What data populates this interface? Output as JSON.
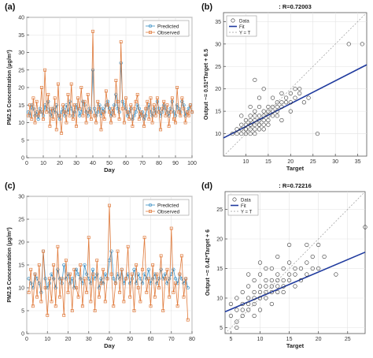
{
  "panels": [
    {
      "label": "(a)"
    },
    {
      "label": "(b)"
    },
    {
      "label": "(c)"
    },
    {
      "label": "(d)"
    }
  ],
  "chart_data": [
    {
      "type": "line",
      "panel": "(a)",
      "xlabel": "Day",
      "ylabel": "PM2.5 Concentration (μg/m³)",
      "xlim": [
        0,
        100
      ],
      "ylim": [
        0,
        40
      ],
      "xticks": [
        0,
        10,
        20,
        30,
        40,
        50,
        60,
        70,
        80,
        90,
        100
      ],
      "yticks": [
        0,
        5,
        10,
        15,
        20,
        25,
        30,
        35,
        40
      ],
      "legend_position": "top-right",
      "colors": {
        "predicted": "#3a8fc4",
        "observed": "#e07b3c"
      },
      "series": [
        {
          "name": "Predicted",
          "values": [
            13,
            12,
            15,
            14,
            12,
            13,
            11,
            14,
            13,
            12,
            15,
            14,
            16,
            13,
            12,
            14,
            13,
            15,
            12,
            11,
            13,
            14,
            12,
            15,
            13,
            16,
            14,
            12,
            13,
            15,
            14,
            12,
            13,
            16,
            15,
            13,
            12,
            14,
            13,
            25,
            14,
            12,
            13,
            15,
            12,
            14,
            13,
            15,
            16,
            14,
            12,
            13,
            15,
            18,
            14,
            13,
            27,
            16,
            15,
            14,
            12,
            13,
            14,
            11,
            12,
            13,
            15,
            14,
            12,
            13,
            11,
            12,
            14,
            15,
            13,
            12,
            14,
            13,
            16,
            14,
            12,
            13,
            15,
            14,
            13,
            12,
            14,
            16,
            13,
            12,
            15,
            14,
            13,
            16,
            15,
            12,
            13,
            14,
            15,
            13
          ]
        },
        {
          "name": "Observed",
          "values": [
            12,
            15,
            11,
            17,
            10,
            16,
            12,
            13,
            20,
            11,
            25,
            13,
            18,
            9,
            14,
            11,
            17,
            8,
            21,
            12,
            7,
            15,
            13,
            10,
            18,
            12,
            21,
            11,
            15,
            9,
            17,
            14,
            20,
            12,
            16,
            10,
            18,
            13,
            11,
            36,
            12,
            10,
            16,
            14,
            8,
            13,
            11,
            19,
            15,
            13,
            10,
            14,
            12,
            22,
            16,
            11,
            33,
            14,
            10,
            17,
            13,
            11,
            15,
            9,
            14,
            16,
            18,
            11,
            13,
            12,
            9,
            14,
            16,
            11,
            17,
            10,
            15,
            12,
            17,
            13,
            8,
            14,
            16,
            12,
            15,
            9,
            13,
            17,
            11,
            10,
            20,
            13,
            12,
            17,
            14,
            10,
            13,
            12,
            15,
            13
          ]
        }
      ]
    },
    {
      "type": "scatter",
      "panel": "(b)",
      "title": ": R=0.72003",
      "xlabel": "Target",
      "ylabel": "Output ~= 0.51*Target + 6.5",
      "xlim": [
        5,
        37
      ],
      "ylim": [
        5,
        37
      ],
      "xticks": [
        10,
        15,
        20,
        25,
        30,
        35
      ],
      "yticks": [
        10,
        15,
        20,
        25,
        30,
        35
      ],
      "legend_position": "top-left",
      "legend": [
        "Data",
        "Fit",
        "Y = T"
      ],
      "fit": {
        "slope": 0.51,
        "intercept": 6.5
      },
      "colors": {
        "fit": "#1f3a9e",
        "identity": "#9a9a9a",
        "data": "#333333"
      },
      "points": [
        [
          7,
          10
        ],
        [
          8,
          10
        ],
        [
          8,
          11
        ],
        [
          9,
          11
        ],
        [
          9,
          10
        ],
        [
          9,
          12
        ],
        [
          10,
          10
        ],
        [
          10,
          11
        ],
        [
          10,
          12
        ],
        [
          10,
          13
        ],
        [
          10,
          11
        ],
        [
          11,
          10
        ],
        [
          11,
          11
        ],
        [
          11,
          12
        ],
        [
          11,
          13
        ],
        [
          11,
          12
        ],
        [
          11,
          14
        ],
        [
          12,
          11
        ],
        [
          12,
          12
        ],
        [
          12,
          13
        ],
        [
          12,
          14
        ],
        [
          12,
          10
        ],
        [
          12,
          15
        ],
        [
          13,
          11
        ],
        [
          13,
          12
        ],
        [
          13,
          13
        ],
        [
          13,
          14
        ],
        [
          13,
          12
        ],
        [
          13,
          16
        ],
        [
          14,
          12
        ],
        [
          14,
          13
        ],
        [
          14,
          14
        ],
        [
          14,
          15
        ],
        [
          14,
          11
        ],
        [
          14,
          20
        ],
        [
          15,
          13
        ],
        [
          15,
          14
        ],
        [
          15,
          15
        ],
        [
          15,
          16
        ],
        [
          15,
          12
        ],
        [
          16,
          14
        ],
        [
          16,
          15
        ],
        [
          16,
          16
        ],
        [
          16,
          18
        ],
        [
          17,
          15
        ],
        [
          17,
          16
        ],
        [
          17,
          17
        ],
        [
          17,
          14
        ],
        [
          18,
          16
        ],
        [
          18,
          17
        ],
        [
          18,
          19
        ],
        [
          19,
          17
        ],
        [
          19,
          18
        ],
        [
          20,
          19
        ],
        [
          20,
          17
        ],
        [
          21,
          18
        ],
        [
          21,
          20
        ],
        [
          22,
          19
        ],
        [
          23,
          17
        ],
        [
          24,
          18
        ],
        [
          26,
          10
        ],
        [
          33,
          30
        ],
        [
          36,
          30
        ],
        [
          12,
          22
        ],
        [
          11,
          16
        ],
        [
          9,
          14
        ],
        [
          13,
          18
        ],
        [
          20,
          15
        ],
        [
          22,
          20
        ],
        [
          18,
          13
        ]
      ]
    },
    {
      "type": "line",
      "panel": "(c)",
      "xlabel": "Day",
      "ylabel": "PM2.5 Concentration (μg/m³)",
      "xlim": [
        0,
        80
      ],
      "ylim": [
        0,
        30
      ],
      "xticks": [
        0,
        10,
        20,
        30,
        40,
        50,
        60,
        70,
        80
      ],
      "yticks": [
        0,
        5,
        10,
        15,
        20,
        25,
        30
      ],
      "legend_position": "top-right",
      "colors": {
        "predicted": "#3a8fc4",
        "observed": "#e07b3c"
      },
      "series": [
        {
          "name": "Predicted",
          "values": [
            12,
            11,
            10,
            13,
            12,
            11,
            9,
            18,
            12,
            10,
            11,
            13,
            12,
            10,
            14,
            12,
            11,
            15,
            12,
            13,
            11,
            12,
            10,
            14,
            13,
            12,
            11,
            15,
            13,
            12,
            11,
            14,
            12,
            13,
            10,
            12,
            11,
            13,
            12,
            16,
            18,
            12,
            11,
            13,
            12,
            14,
            11,
            12,
            13,
            11,
            12,
            14,
            11,
            13,
            12,
            11,
            13,
            12,
            14,
            11,
            12,
            13,
            11,
            12,
            14,
            12,
            13,
            11,
            12,
            13,
            14,
            12,
            11,
            13,
            12,
            11,
            12,
            10
          ]
        },
        {
          "name": "Observed",
          "values": [
            9,
            14,
            6,
            13,
            8,
            15,
            7,
            18,
            10,
            4,
            12,
            7,
            15,
            6,
            19,
            8,
            12,
            4,
            16,
            9,
            13,
            5,
            14,
            10,
            8,
            15,
            6,
            12,
            9,
            21,
            7,
            13,
            5,
            16,
            8,
            11,
            14,
            7,
            12,
            28,
            13,
            6,
            11,
            18,
            9,
            14,
            7,
            12,
            19,
            8,
            13,
            5,
            15,
            10,
            7,
            14,
            21,
            9,
            12,
            6,
            15,
            8,
            13,
            10,
            17,
            5,
            12,
            14,
            8,
            23,
            9,
            11,
            6,
            13,
            17,
            8,
            12,
            3
          ]
        }
      ]
    },
    {
      "type": "scatter",
      "panel": "(d)",
      "title": ": R=0.72216",
      "xlabel": "Target",
      "ylabel": "Output ~= 0.42*Target + 6",
      "xlim": [
        4,
        28
      ],
      "ylim": [
        4,
        28
      ],
      "xticks": [
        5,
        10,
        15,
        20,
        25
      ],
      "yticks": [
        5,
        10,
        15,
        20,
        25
      ],
      "legend_position": "top-left",
      "legend": [
        "Data",
        "Fit",
        "Y = T"
      ],
      "fit": {
        "slope": 0.42,
        "intercept": 6
      },
      "colors": {
        "fit": "#1f3a9e",
        "identity": "#9a9a9a",
        "data": "#333333"
      },
      "points": [
        [
          5,
          7
        ],
        [
          5,
          9
        ],
        [
          6,
          8
        ],
        [
          6,
          10
        ],
        [
          6,
          6
        ],
        [
          7,
          8
        ],
        [
          7,
          9
        ],
        [
          7,
          11
        ],
        [
          7,
          7
        ],
        [
          8,
          9
        ],
        [
          8,
          10
        ],
        [
          8,
          12
        ],
        [
          8,
          8
        ],
        [
          9,
          9
        ],
        [
          9,
          10
        ],
        [
          9,
          11
        ],
        [
          9,
          13
        ],
        [
          10,
          10
        ],
        [
          10,
          11
        ],
        [
          10,
          12
        ],
        [
          10,
          8
        ],
        [
          10,
          14
        ],
        [
          11,
          11
        ],
        [
          11,
          12
        ],
        [
          11,
          13
        ],
        [
          11,
          10
        ],
        [
          12,
          11
        ],
        [
          12,
          12
        ],
        [
          12,
          13
        ],
        [
          12,
          15
        ],
        [
          13,
          12
        ],
        [
          13,
          13
        ],
        [
          13,
          14
        ],
        [
          13,
          11
        ],
        [
          14,
          12
        ],
        [
          14,
          13
        ],
        [
          14,
          15
        ],
        [
          15,
          13
        ],
        [
          15,
          14
        ],
        [
          15,
          16
        ],
        [
          16,
          14
        ],
        [
          16,
          15
        ],
        [
          17,
          15
        ],
        [
          17,
          13
        ],
        [
          18,
          16
        ],
        [
          18,
          14
        ],
        [
          19,
          17
        ],
        [
          19,
          15
        ],
        [
          20,
          15
        ],
        [
          21,
          17
        ],
        [
          23,
          14
        ],
        [
          15,
          19
        ],
        [
          16,
          12
        ],
        [
          11,
          15
        ],
        [
          9,
          7
        ],
        [
          12,
          9
        ],
        [
          14,
          11
        ],
        [
          18,
          19
        ],
        [
          28,
          22
        ],
        [
          13,
          17
        ],
        [
          6,
          5
        ],
        [
          8,
          14
        ],
        [
          10,
          16
        ],
        [
          20,
          19
        ]
      ]
    }
  ]
}
